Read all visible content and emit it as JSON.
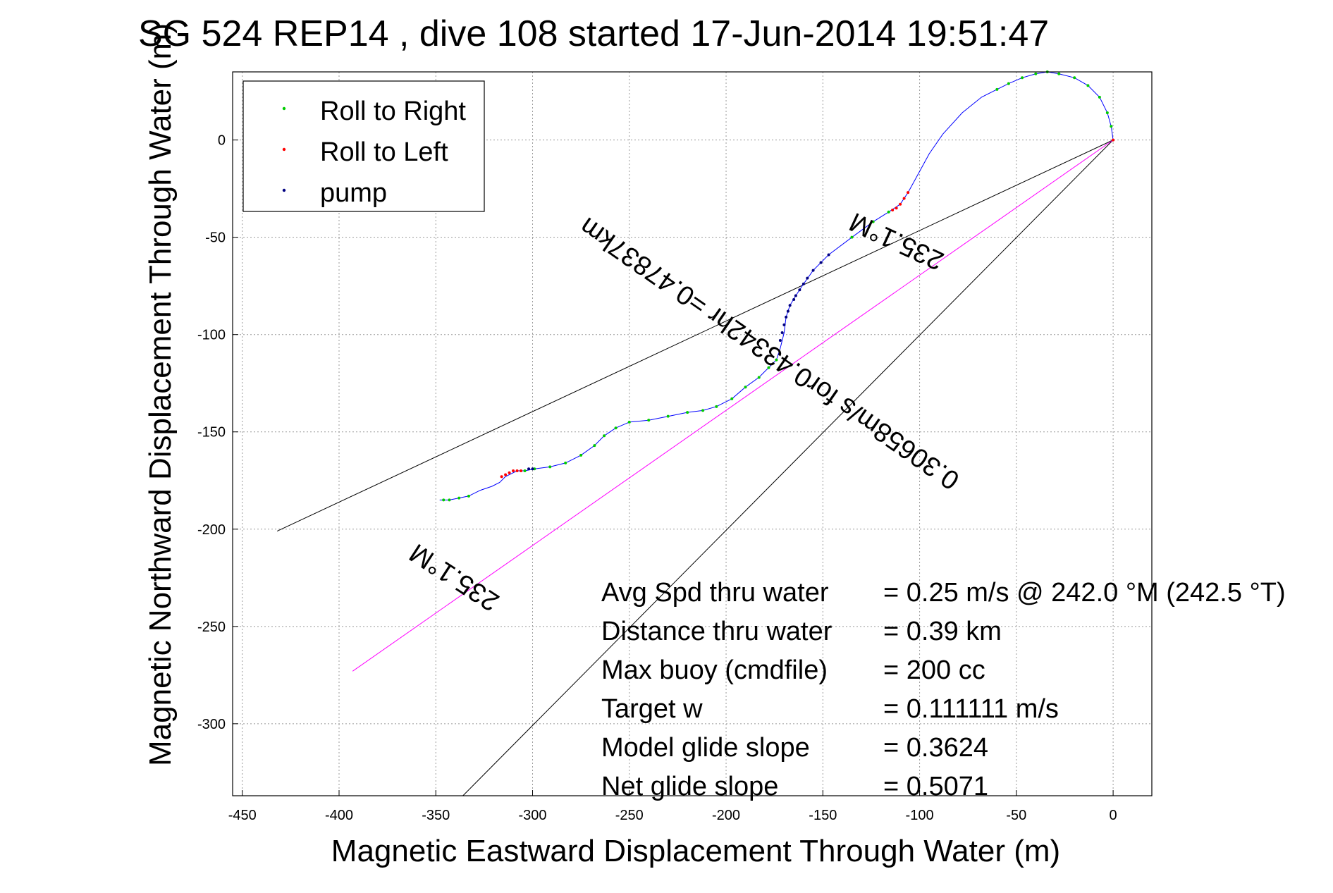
{
  "chart_data": {
    "type": "line",
    "title": "SG 524   REP14  , dive 108 started 17-Jun-2014 19:51:47",
    "xlabel": "Magnetic Eastward Displacement Through Water (m)",
    "ylabel": "Magnetic Northward Displacement Through Water (m)",
    "xlim": [
      -455,
      20
    ],
    "ylim": [
      -337,
      35
    ],
    "xticks": [
      -450,
      -400,
      -350,
      -300,
      -250,
      -200,
      -150,
      -100,
      -50,
      0
    ],
    "yticks": [
      0,
      -50,
      -100,
      -150,
      -200,
      -250,
      -300
    ],
    "grid": true,
    "legend": {
      "placement": "top-left",
      "entries": [
        {
          "label": "Roll to Right",
          "color": "#00cc00"
        },
        {
          "label": "Roll to Left",
          "color": "#ff0000"
        },
        {
          "label": "pump",
          "color": "#000080"
        }
      ]
    },
    "track": {
      "name": "track",
      "color": "#0000ff",
      "x": [
        0,
        -1,
        -3,
        -7,
        -13,
        -20,
        -28,
        -34,
        -40,
        -47,
        -54,
        -60,
        -68,
        -78,
        -88,
        -95,
        -101,
        -106,
        -110,
        -116,
        -124,
        -135,
        -147,
        -155,
        -160,
        -164,
        -167,
        -169,
        -170,
        -172,
        -174,
        -178,
        -183,
        -190,
        -197,
        -205,
        -212,
        -220,
        -230,
        -240,
        -250,
        -257,
        -263,
        -268,
        -275,
        -283,
        -291,
        -299,
        -304,
        -308,
        -310,
        -314,
        -317,
        -321,
        -327,
        -333,
        -338,
        -343,
        -346,
        -348
      ],
      "y": [
        0,
        7,
        14,
        22,
        28,
        32,
        34,
        35,
        34,
        32,
        29,
        26,
        22,
        14,
        3,
        -7,
        -18,
        -27,
        -33,
        -37,
        -42,
        -50,
        -59,
        -67,
        -74,
        -80,
        -85,
        -91,
        -99,
        -107,
        -113,
        -117,
        -122,
        -127,
        -133,
        -137,
        -139,
        -140,
        -142,
        -144,
        -145,
        -148,
        -152,
        -157,
        -162,
        -166,
        -168,
        -169,
        -170,
        -170,
        -171,
        -173,
        -176,
        -178,
        -180,
        -183,
        -184,
        -185,
        -185,
        -185
      ]
    },
    "markers": {
      "right_x": [
        -1,
        -3,
        -7,
        -13,
        -20,
        -28,
        -34,
        -40,
        -47,
        -54,
        -60,
        -116,
        -124,
        -135,
        -174,
        -178,
        -183,
        -190,
        -197,
        -205,
        -212,
        -220,
        -230,
        -240,
        -250,
        -257,
        -263,
        -268,
        -275,
        -283,
        -291,
        -299,
        -304,
        -333,
        -338,
        -343,
        -346
      ],
      "right_y": [
        7,
        14,
        22,
        28,
        32,
        34,
        35,
        34,
        32,
        29,
        26,
        -37,
        -42,
        -50,
        -113,
        -117,
        -122,
        -127,
        -133,
        -137,
        -139,
        -140,
        -142,
        -144,
        -145,
        -148,
        -152,
        -157,
        -162,
        -166,
        -168,
        -169,
        -170,
        -183,
        -184,
        -185,
        -185
      ],
      "left_x": [
        -106,
        -108,
        -110,
        -112,
        -114,
        -306,
        -308,
        -310,
        -312,
        -314,
        -316,
        0
      ],
      "left_y": [
        -27,
        -30,
        -33,
        -35,
        -36,
        -170,
        -170,
        -170,
        -171,
        -172,
        -173,
        0
      ],
      "pump_x": [
        -147,
        -151,
        -155,
        -158,
        -160,
        -162,
        -164,
        -165,
        -167,
        -168,
        -169,
        -170,
        -171,
        -172,
        -300,
        -302
      ],
      "pump_y": [
        -59,
        -63,
        -67,
        -71,
        -74,
        -77,
        -80,
        -82,
        -85,
        -88,
        -91,
        -95,
        -99,
        -103,
        -169,
        -169
      ]
    },
    "reference_lines": [
      {
        "name": "heading-line-upper",
        "color": "#000000",
        "x": [
          0,
          -432
        ],
        "y": [
          0,
          -201
        ]
      },
      {
        "name": "heading-line-lower",
        "color": "#000000",
        "x": [
          0,
          -336
        ],
        "y": [
          0,
          -337
        ]
      },
      {
        "name": "average-line",
        "color": "#ff00ff",
        "x": [
          0,
          -393
        ],
        "y": [
          0,
          -273
        ]
      }
    ],
    "rotated_labels": [
      {
        "name": "heading-label-top",
        "text": "235.1°M",
        "x": -110,
        "y": -48,
        "angle": 205
      },
      {
        "name": "speed-label",
        "text": "0.30658m/s for0.43342hr =0.47837km",
        "x": -175,
        "y": -106,
        "angle": 214.8
      },
      {
        "name": "heading-label-bottom",
        "text": "235.1°M",
        "x": -338,
        "y": -221,
        "angle": 213
      }
    ],
    "stats": [
      {
        "label": "Avg Spd thru water",
        "value": "=  0.25 m/s @ 242.0 °M (242.5 °T)"
      },
      {
        "label": "Distance thru water",
        "value": "=  0.39 km"
      },
      {
        "label": "Max buoy (cmdfile)",
        "value": "= 200 cc"
      },
      {
        "label": "Target w",
        "value": "= 0.111111 m/s"
      },
      {
        "label": "Model glide slope",
        "value": "= 0.3624"
      },
      {
        "label": "Net glide slope",
        "value": "= 0.5071"
      }
    ]
  }
}
